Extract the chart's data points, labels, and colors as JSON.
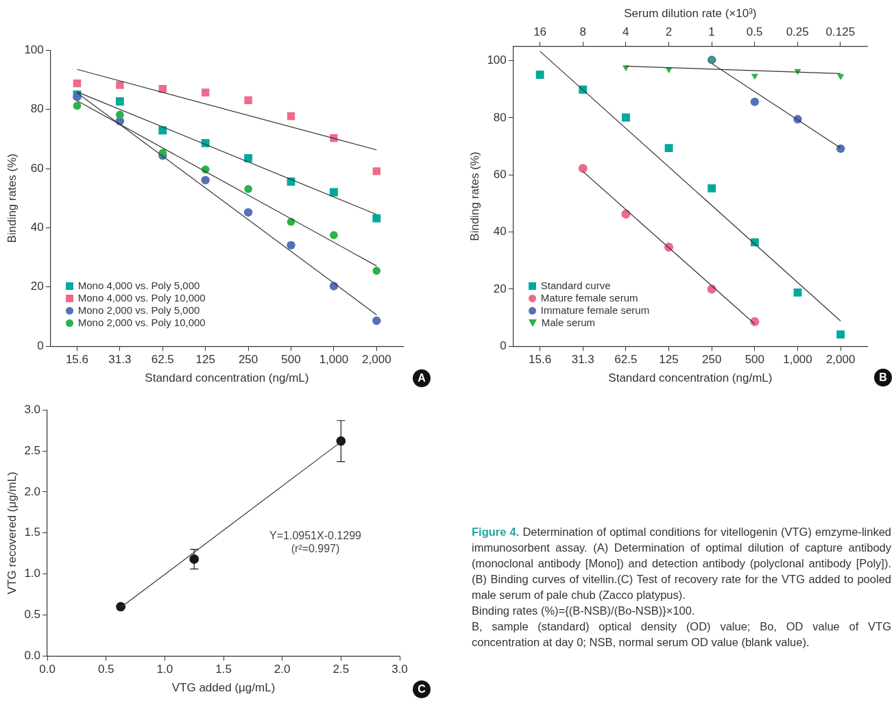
{
  "chart_data": [
    {
      "type": "scatter",
      "categories": [
        "15.6",
        "31.3",
        "62.5",
        "125",
        "250",
        "500",
        "1,000",
        "2,000"
      ],
      "xlabel": "Standard concentration (ng/mL)",
      "ylabel": "Binding rates (%)",
      "ylim": [
        0,
        100
      ],
      "yticks": [
        0,
        20,
        40,
        60,
        80,
        100
      ],
      "legend": "bottom left",
      "annotations": [
        "A"
      ],
      "series": [
        {
          "name": "Mono 4,000 vs. Poly 5,000",
          "color": "#00a99d",
          "marker": "square",
          "values": [
            85.0,
            82.7,
            72.9,
            68.6,
            63.5,
            55.6,
            52.0,
            43.2
          ]
        },
        {
          "name": "Mono 4,000 vs. Poly 10,000",
          "color": "#ef6a8a",
          "marker": "square",
          "values": [
            88.8,
            88.2,
            86.9,
            85.7,
            83.1,
            77.7,
            70.3,
            59.1
          ]
        },
        {
          "name": "Mono 2,000 vs. Poly 5,000",
          "color": "#5470b8",
          "marker": "circle",
          "values": [
            84.2,
            76.0,
            64.4,
            56.1,
            45.2,
            34.1,
            20.3,
            8.6
          ]
        },
        {
          "name": "Mono 2,000 vs. Poly 10,000",
          "color": "#2bb24c",
          "marker": "circle",
          "values": [
            81.2,
            78.2,
            65.3,
            59.7,
            53.1,
            42.0,
            37.5,
            25.5
          ]
        },
        {
          "type": "line",
          "color": "#333333",
          "marker": "none",
          "x": [
            "15.6",
            "2,000"
          ],
          "values": [
            85.9,
            44.5
          ]
        },
        {
          "type": "line",
          "color": "#333333",
          "marker": "none",
          "x": [
            "15.6",
            "2,000"
          ],
          "values": [
            93.5,
            66.3
          ]
        },
        {
          "type": "line",
          "color": "#333333",
          "marker": "none",
          "x": [
            "15.6",
            "2,000"
          ],
          "values": [
            85.6,
            10.6
          ]
        },
        {
          "type": "line",
          "color": "#333333",
          "marker": "none",
          "x": [
            "15.6",
            "2,000"
          ],
          "values": [
            82.9,
            27.1
          ]
        }
      ]
    },
    {
      "type": "scatter",
      "categories": [
        "15.6",
        "31.3",
        "62.5",
        "125",
        "250",
        "500",
        "1,000",
        "2,000"
      ],
      "log": "x2",
      "x2lim": [
        24.6,
        0.081
      ],
      "x2ticks": [
        16,
        8,
        4,
        2,
        1,
        0.5,
        0.25,
        0.125
      ],
      "xlabel": "Standard concentration (ng/mL)",
      "x2label": "Serum dilution rate (×10³)",
      "ylabel": "Binding rates (%)",
      "ylim": [
        0,
        105
      ],
      "yticks": [
        0,
        20,
        40,
        60,
        80,
        100
      ],
      "legend": "bottom left",
      "annotations": [
        "B"
      ],
      "series": [
        {
          "name": "Standard curve",
          "color": "#00a99d",
          "marker": "square",
          "values": [
            95.1,
            89.9,
            80.1,
            69.4,
            55.3,
            36.4,
            18.8,
            4.1
          ]
        },
        {
          "name": "Mature female serum",
          "color": "#ef6a8a",
          "marker": "circle",
          "values": [
            null,
            62.3,
            46.3,
            34.7,
            20.0,
            8.6,
            null,
            null
          ]
        },
        {
          "name": "Immature female serum",
          "color": "#5470b8",
          "marker": "circle",
          "values": [
            null,
            null,
            null,
            null,
            100.3,
            85.6,
            79.5,
            69.2
          ]
        },
        {
          "name": "Male serum",
          "color": "#2bb24c",
          "marker": "triangle",
          "values": [
            null,
            null,
            97.7,
            97.0,
            100.4,
            94.7,
            96.4,
            94.6
          ]
        },
        {
          "type": "line",
          "color": "#333333",
          "marker": "none",
          "x": [
            "15.6",
            "2,000"
          ],
          "values": [
            103.3,
            8.8
          ]
        },
        {
          "type": "line",
          "color": "#333333",
          "marker": "none",
          "x": [
            "31.3",
            "500"
          ],
          "values": [
            61.2,
            7.8
          ]
        },
        {
          "type": "line",
          "color": "#333333",
          "marker": "none",
          "x": [
            "250",
            "2,000"
          ],
          "values": [
            99.0,
            69.4
          ]
        },
        {
          "type": "line",
          "color": "#333333",
          "marker": "none",
          "x": [
            "62.5",
            "2,000"
          ],
          "values": [
            98.1,
            95.5
          ]
        }
      ]
    },
    {
      "type": "scatter",
      "xlabel": "VTG added (μg/mL)",
      "ylabel": "VTG recovered (μg/mL)",
      "xlim": [
        0,
        3
      ],
      "xticks": [
        {
          "value": 0,
          "label": "0.0"
        },
        {
          "value": 0.5,
          "label": "0.5"
        },
        {
          "value": 1,
          "label": "1.0"
        },
        {
          "value": 1.5,
          "label": "1.5"
        },
        {
          "value": 2,
          "label": "2.0"
        },
        {
          "value": 2.5,
          "label": "2.5"
        },
        {
          "value": 3,
          "label": "3.0"
        }
      ],
      "ylim": [
        0,
        3
      ],
      "yticks": [
        {
          "value": 0,
          "label": "0.0"
        },
        {
          "value": 0.5,
          "label": "0.5"
        },
        {
          "value": 1,
          "label": "1.0"
        },
        {
          "value": 1.5,
          "label": "1.5"
        },
        {
          "value": 2,
          "label": "2.0"
        },
        {
          "value": 2.5,
          "label": "2.5"
        },
        {
          "value": 3,
          "label": "3.0"
        }
      ],
      "annotations": [
        "C",
        "Y=1.0951X-0.1299",
        "(r²=0.997)"
      ],
      "series": [
        {
          "color": "#1a1a1a",
          "marker": "circle",
          "x": [
            0.625,
            1.25,
            2.5
          ],
          "values": [
            0.6,
            1.18,
            2.62
          ],
          "errors": [
            null,
            0.12,
            0.25
          ]
        },
        {
          "type": "line",
          "color": "#333333",
          "marker": "none",
          "x": [
            0.625,
            2.5
          ],
          "values": [
            0.59,
            2.61
          ]
        }
      ]
    },
    {
      "type": "other",
      "annotations": [
        "Figure 4.",
        "Determination of optimal conditions for vitellogenin (VTG) emzyme-linked immunosorbent assay. (A) Determination of optimal dilution of capture antibody (monoclonal antibody [Mono]) and detection antibody (polyclonal antibody [Poly]). (B) Binding curves of vitellin.(C) Test of recovery rate for the VTG added to pooled male serum of pale chub (Zacco platypus).",
        "Binding rates (%)={(B-NSB)/(Bo-NSB)}×100.",
        "B, sample (standard) optical density (OD) value; Bo, OD value of VTG concentration at day 0; NSB, normal serum OD value (blank value)."
      ]
    }
  ]
}
